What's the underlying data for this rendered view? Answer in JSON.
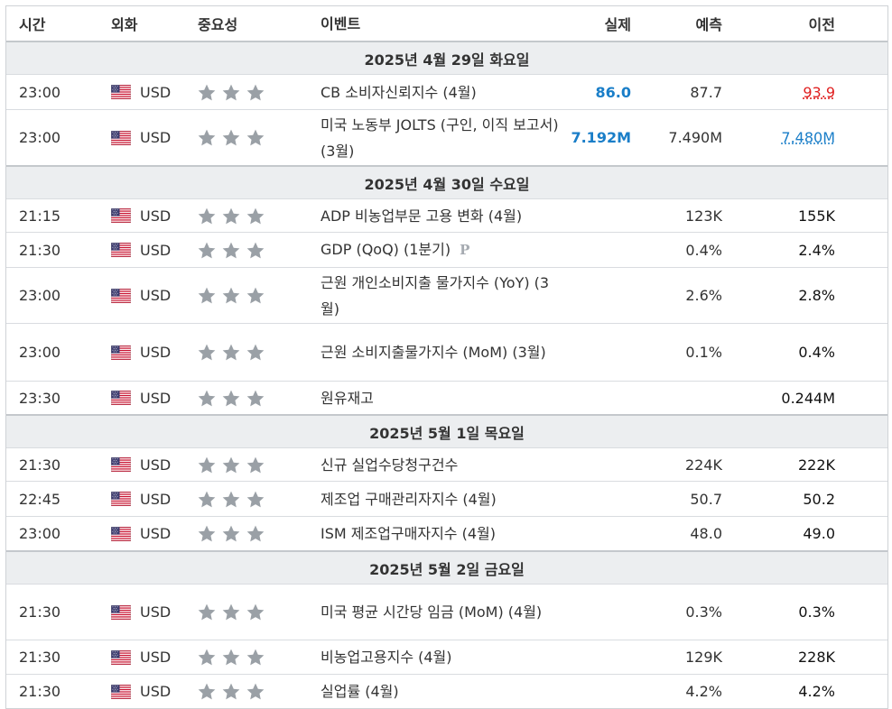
{
  "headers": {
    "time": "시간",
    "currency": "외화",
    "importance": "중요성",
    "event": "이벤트",
    "actual": "실제",
    "forecast": "예측",
    "previous": "이전"
  },
  "colors": {
    "actual_blue": "#1a7ec8",
    "previous_red": "#e02020",
    "star_gray": "#9aa0a6",
    "day_bg": "#eceef0"
  },
  "importance_stars": 3,
  "flag_icon": "us-flag-icon",
  "days": [
    {
      "label": "2025년 4월 29일 화요일",
      "events": [
        {
          "time": "23:00",
          "currency": "USD",
          "name": "CB 소비자신뢰지수 (4월)",
          "actual": "86.0",
          "forecast": "87.7",
          "previous": "93.9",
          "previous_color": "red"
        },
        {
          "time": "23:00",
          "currency": "USD",
          "name": "미국 노동부 JOLTS (구인, 이직 보고서) (3월)",
          "actual": "7.192M",
          "forecast": "7.490M",
          "previous": "7.480M",
          "previous_color": "blue"
        }
      ]
    },
    {
      "label": "2025년 4월 30일 수요일",
      "events": [
        {
          "time": "21:15",
          "currency": "USD",
          "name": "ADP 비농업부문 고용 변화 (4월)",
          "actual": "",
          "forecast": "123K",
          "previous": "155K"
        },
        {
          "time": "21:30",
          "currency": "USD",
          "name": "GDP (QoQ) (1분기)",
          "badge": "P",
          "actual": "",
          "forecast": "0.4%",
          "previous": "2.4%"
        },
        {
          "time": "23:00",
          "currency": "USD",
          "name": "근원 개인소비지출 물가지수 (YoY) (3월)",
          "actual": "",
          "forecast": "2.6%",
          "previous": "2.8%"
        },
        {
          "time": "23:00",
          "currency": "USD",
          "name": "근원 소비지출물가지수 (MoM) (3월)",
          "actual": "",
          "forecast": "0.1%",
          "previous": "0.4%"
        },
        {
          "time": "23:30",
          "currency": "USD",
          "name": "원유재고",
          "actual": "",
          "forecast": "",
          "previous": "0.244M"
        }
      ]
    },
    {
      "label": "2025년 5월 1일 목요일",
      "events": [
        {
          "time": "21:30",
          "currency": "USD",
          "name": "신규 실업수당청구건수",
          "actual": "",
          "forecast": "224K",
          "previous": "222K"
        },
        {
          "time": "22:45",
          "currency": "USD",
          "name": "제조업 구매관리자지수 (4월)",
          "actual": "",
          "forecast": "50.7",
          "previous": "50.2"
        },
        {
          "time": "23:00",
          "currency": "USD",
          "name": "ISM 제조업구매자지수 (4월)",
          "actual": "",
          "forecast": "48.0",
          "previous": "49.0"
        }
      ]
    },
    {
      "label": "2025년 5월 2일 금요일",
      "events": [
        {
          "time": "21:30",
          "currency": "USD",
          "name": "미국 평균 시간당 임금 (MoM) (4월)",
          "actual": "",
          "forecast": "0.3%",
          "previous": "0.3%"
        },
        {
          "time": "21:30",
          "currency": "USD",
          "name": "비농업고용지수 (4월)",
          "actual": "",
          "forecast": "129K",
          "previous": "228K"
        },
        {
          "time": "21:30",
          "currency": "USD",
          "name": "실업률 (4월)",
          "actual": "",
          "forecast": "4.2%",
          "previous": "4.2%"
        }
      ]
    }
  ]
}
